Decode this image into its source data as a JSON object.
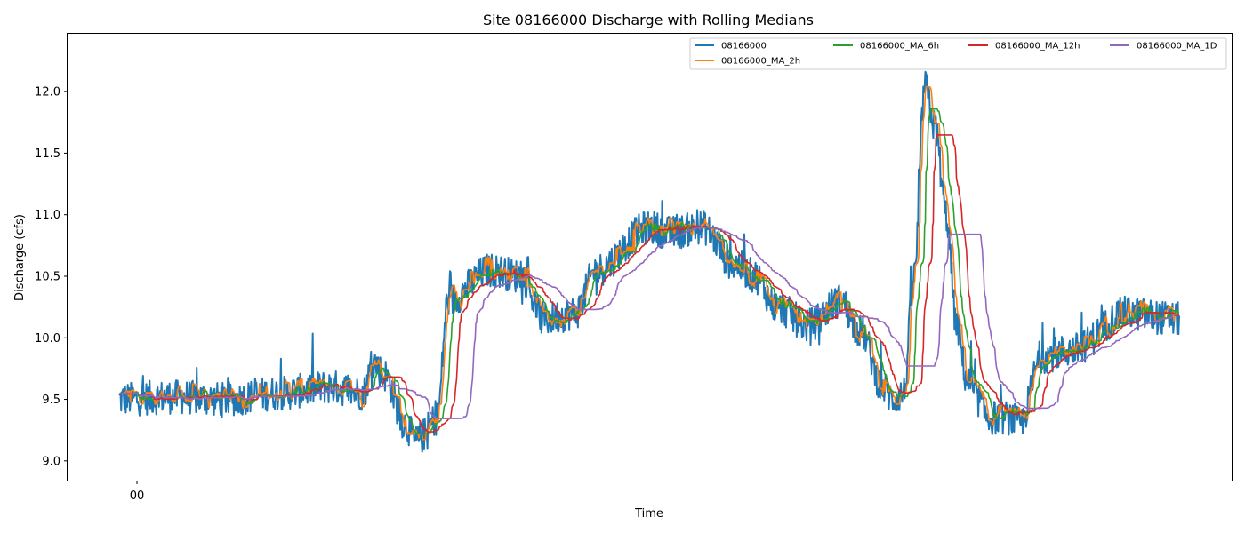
{
  "chart_data": {
    "type": "line",
    "title": "Site 08166000 Discharge with Rolling Medians",
    "xlabel": "Time",
    "ylabel": "Discharge (cfs)",
    "x_tick_labels": [
      "00"
    ],
    "y_ticks": [
      9.0,
      9.5,
      10.0,
      10.5,
      11.0,
      11.5,
      12.0
    ],
    "ylim": [
      8.84,
      12.47
    ],
    "grid": false,
    "legend_position": "top-right",
    "n_samples": 1600,
    "keypoints_t": [
      0,
      0.05,
      0.1,
      0.15,
      0.2,
      0.23,
      0.24,
      0.25,
      0.27,
      0.28,
      0.285,
      0.3,
      0.31,
      0.35,
      0.38,
      0.4,
      0.43,
      0.45,
      0.5,
      0.52,
      0.55,
      0.58,
      0.6,
      0.62,
      0.65,
      0.68,
      0.7,
      0.72,
      0.73,
      0.74,
      0.75,
      0.76,
      0.77,
      0.78,
      0.79,
      0.8,
      0.81,
      0.82,
      0.84,
      0.85,
      0.87,
      0.9,
      0.95,
      1.0
    ],
    "keypoints_v": [
      9.5,
      9.52,
      9.5,
      9.55,
      9.6,
      9.55,
      9.8,
      9.7,
      9.3,
      9.15,
      9.2,
      9.35,
      10.3,
      10.55,
      10.5,
      10.15,
      10.2,
      10.55,
      10.9,
      10.85,
      10.9,
      10.6,
      10.5,
      10.25,
      10.1,
      10.3,
      10.05,
      9.6,
      9.5,
      9.55,
      10.5,
      12.05,
      11.7,
      11.0,
      10.1,
      9.65,
      9.5,
      9.35,
      9.35,
      9.3,
      9.85,
      9.9,
      10.2,
      10.15
    ],
    "raw_noise_amplitude": 0.28,
    "series": [
      {
        "name": "08166000",
        "color": "#1f77b4",
        "window_samples": 1,
        "line_width": 2.0
      },
      {
        "name": "08166000_MA_2h",
        "color": "#ff7f0e",
        "window_samples": 8,
        "line_width": 1.6
      },
      {
        "name": "08166000_MA_6h",
        "color": "#2ca02c",
        "window_samples": 24,
        "line_width": 1.6
      },
      {
        "name": "08166000_MA_12h",
        "color": "#d62728",
        "window_samples": 48,
        "line_width": 1.6
      },
      {
        "name": "08166000_MA_1D",
        "color": "#9467bd",
        "window_samples": 96,
        "line_width": 1.6
      }
    ]
  }
}
